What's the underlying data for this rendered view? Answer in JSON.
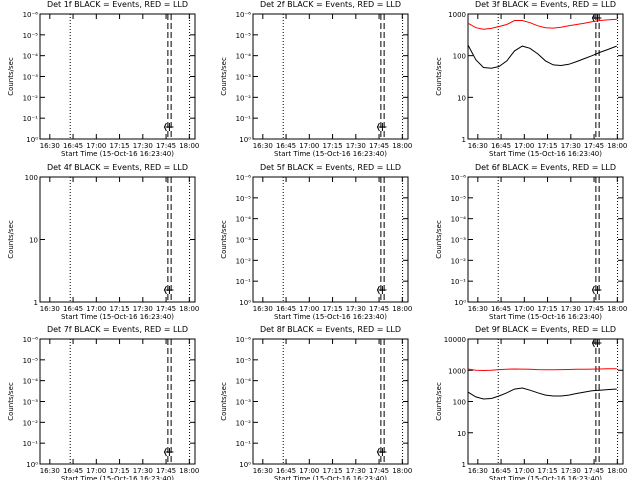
{
  "chart_data": [
    {
      "type": "line",
      "title": "Det 1f BLACK = Events, RED = LLD",
      "xlabel": "Start Time (15-Oct-16 16:23:40)",
      "ylabel": "Counts/sec",
      "yscale": "log",
      "ylim": [
        1,
        10
      ],
      "ytick_labels": [
        "10⁰",
        "10⁻¹",
        "10⁻²",
        "10⁻³",
        "10⁻⁴",
        "10⁻⁵",
        "10⁻⁶"
      ],
      "xtick_labels": [
        "16:30",
        "16:45",
        "17:00",
        "17:15",
        "17:30",
        "17:45",
        "18:00"
      ],
      "series": []
    },
    {
      "type": "line",
      "title": "Det 2f BLACK = Events, RED = LLD",
      "xlabel": "Start Time (15-Oct-16 16:23:40)",
      "ylabel": "Counts/sec",
      "yscale": "log",
      "ylim": [
        1,
        10
      ],
      "ytick_labels": [
        "10⁰",
        "10⁻¹",
        "10⁻²",
        "10⁻³",
        "10⁻⁴",
        "10⁻⁵",
        "10⁻⁶"
      ],
      "xtick_labels": [
        "16:30",
        "16:45",
        "17:00",
        "17:15",
        "17:30",
        "17:45",
        "18:00"
      ],
      "series": []
    },
    {
      "type": "line",
      "title": "Det 3f BLACK = Events, RED = LLD",
      "xlabel": "Start Time (15-Oct-16 16:23:40)",
      "ylabel": "Counts/sec",
      "yscale": "log",
      "ylim": [
        1,
        1000
      ],
      "ytick_labels": [
        "1",
        "10",
        "100",
        "1000"
      ],
      "xtick_labels": [
        "16:30",
        "16:45",
        "17:00",
        "17:15",
        "17:30",
        "17:45",
        "18:00"
      ],
      "series": [
        {
          "color": "#ff0000",
          "x": [
            0,
            5,
            10,
            15,
            20,
            25,
            30,
            35,
            40,
            45,
            50,
            55,
            60,
            65,
            70,
            75,
            80,
            85,
            90,
            95,
            96
          ],
          "y": [
            600,
            470,
            430,
            450,
            500,
            560,
            700,
            700,
            620,
            520,
            470,
            460,
            480,
            520,
            560,
            600,
            650,
            700,
            720,
            740,
            740
          ]
        },
        {
          "color": "#000000",
          "x": [
            0,
            5,
            10,
            15,
            20,
            25,
            30,
            35,
            40,
            45,
            50,
            55,
            60,
            65,
            70,
            75,
            80,
            85,
            90,
            95,
            96
          ],
          "y": [
            180,
            80,
            52,
            50,
            55,
            75,
            130,
            170,
            150,
            110,
            75,
            60,
            58,
            62,
            72,
            85,
            100,
            120,
            140,
            165,
            170
          ]
        }
      ]
    },
    {
      "type": "line",
      "title": "Det 4f BLACK = Events, RED = LLD",
      "xlabel": "Start Time (15-Oct-16 16:23:40)",
      "ylabel": "Counts/sec",
      "yscale": "log",
      "ylim": [
        1,
        100
      ],
      "ytick_labels": [
        "1",
        "10",
        "100"
      ],
      "xtick_labels": [
        "16:30",
        "16:45",
        "17:00",
        "17:15",
        "17:30",
        "17:45",
        "18:00"
      ],
      "series": []
    },
    {
      "type": "line",
      "title": "Det 5f BLACK = Events, RED = LLD",
      "xlabel": "Start Time (15-Oct-16 16:23:40)",
      "ylabel": "Counts/sec",
      "yscale": "log",
      "ylim": [
        1,
        10
      ],
      "ytick_labels": [
        "10⁰",
        "10⁻¹",
        "10⁻²",
        "10⁻³",
        "10⁻⁴",
        "10⁻⁵",
        "10⁻⁶"
      ],
      "xtick_labels": [
        "16:30",
        "16:45",
        "17:00",
        "17:15",
        "17:30",
        "17:45",
        "18:00"
      ],
      "series": []
    },
    {
      "type": "line",
      "title": "Det 6f BLACK = Events, RED = LLD",
      "xlabel": "Start Time (15-Oct-16 16:23:40)",
      "ylabel": "Counts/sec",
      "yscale": "log",
      "ylim": [
        1,
        10
      ],
      "ytick_labels": [
        "10⁰",
        "10⁻¹",
        "10⁻²",
        "10⁻³",
        "10⁻⁴",
        "10⁻⁵",
        "10⁻⁶"
      ],
      "xtick_labels": [
        "16:30",
        "16:45",
        "17:00",
        "17:15",
        "17:30",
        "17:45",
        "18:00"
      ],
      "series": []
    },
    {
      "type": "line",
      "title": "Det 7f BLACK = Events, RED = LLD",
      "xlabel": "Start Time (15-Oct-16 16:23:40)",
      "ylabel": "Counts/sec",
      "yscale": "log",
      "ylim": [
        1,
        10
      ],
      "ytick_labels": [
        "10⁰",
        "10⁻¹",
        "10⁻²",
        "10⁻³",
        "10⁻⁴",
        "10⁻⁵",
        "10⁻⁶"
      ],
      "xtick_labels": [
        "16:30",
        "16:45",
        "17:00",
        "17:15",
        "17:30",
        "17:45",
        "18:00"
      ],
      "series": []
    },
    {
      "type": "line",
      "title": "Det 8f BLACK = Events, RED = LLD",
      "xlabel": "Start Time (15-Oct-16 16:23:40)",
      "ylabel": "Counts/sec",
      "yscale": "log",
      "ylim": [
        1,
        10
      ],
      "ytick_labels": [
        "10⁰",
        "10⁻¹",
        "10⁻²",
        "10⁻³",
        "10⁻⁴",
        "10⁻⁵",
        "10⁻⁶"
      ],
      "xtick_labels": [
        "16:30",
        "16:45",
        "17:00",
        "17:15",
        "17:30",
        "17:45",
        "18:00"
      ],
      "series": []
    },
    {
      "type": "line",
      "title": "Det 9f BLACK = Events, RED = LLD",
      "xlabel": "Start Time (15-Oct-16 16:23:40)",
      "ylabel": "Counts/sec",
      "yscale": "log",
      "ylim": [
        1,
        10000
      ],
      "ytick_labels": [
        "1",
        "10",
        "100",
        "1000",
        "10000"
      ],
      "xtick_labels": [
        "16:30",
        "16:45",
        "17:00",
        "17:15",
        "17:30",
        "17:45",
        "18:00"
      ],
      "series": [
        {
          "color": "#ff0000",
          "x": [
            0,
            5,
            10,
            15,
            20,
            25,
            30,
            35,
            40,
            45,
            50,
            55,
            60,
            65,
            70,
            75,
            80,
            85,
            90,
            95,
            96
          ],
          "y": [
            1100,
            1000,
            980,
            1000,
            1050,
            1080,
            1100,
            1090,
            1070,
            1050,
            1040,
            1040,
            1050,
            1060,
            1070,
            1080,
            1090,
            1100,
            1110,
            1120,
            1120
          ]
        },
        {
          "color": "#000000",
          "x": [
            0,
            5,
            10,
            15,
            20,
            25,
            30,
            35,
            40,
            45,
            50,
            55,
            60,
            65,
            70,
            75,
            80,
            85,
            90,
            95,
            96
          ],
          "y": [
            200,
            140,
            120,
            125,
            150,
            190,
            250,
            270,
            230,
            190,
            160,
            150,
            150,
            160,
            180,
            200,
            220,
            230,
            240,
            250,
            250
          ]
        }
      ]
    }
  ]
}
